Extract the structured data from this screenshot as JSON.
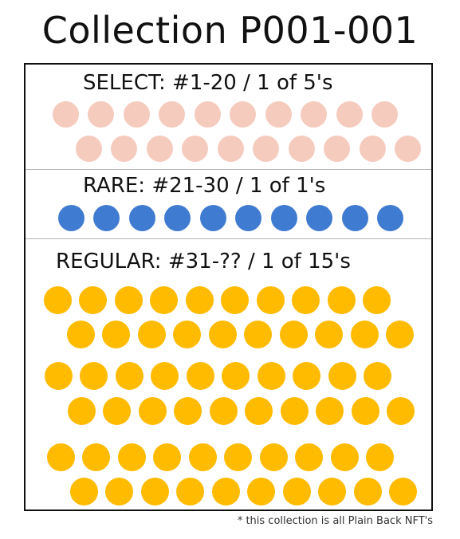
{
  "title": "Collection P001-001",
  "sections": [
    {
      "key": "select",
      "label": "SELECT: #1-20 / 1 of 5's",
      "color": "#f5cbbd",
      "count": 20
    },
    {
      "key": "rare",
      "label": "RARE: #21-30 / 1 of 1's",
      "color": "#3f7bd0",
      "count": 10
    },
    {
      "key": "regular",
      "label": "REGULAR: #31-?? / 1 of 15's",
      "color": "#ffbb00",
      "count": 60
    }
  ],
  "footnote": "* this collection is all Plain Back NFT's"
}
